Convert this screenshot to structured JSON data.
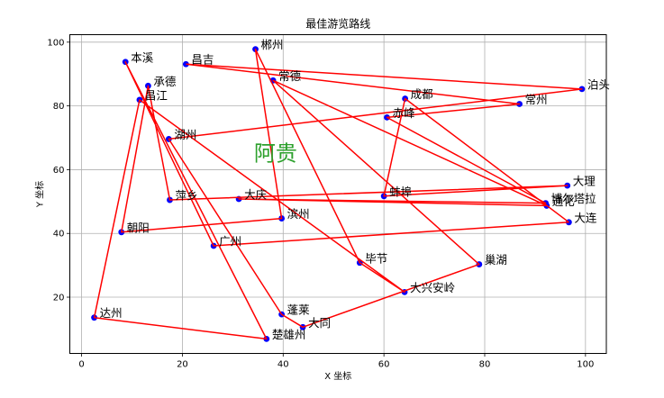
{
  "chart_data": {
    "type": "line",
    "title": "最佳游览路线",
    "xlabel": "X 坐标",
    "ylabel": "Y 坐标",
    "xlim": [
      -2.34,
      104.14
    ],
    "ylim": [
      2.35,
      102.35
    ],
    "xticks": [
      0,
      20,
      40,
      60,
      80,
      100
    ],
    "yticks": [
      20,
      40,
      60,
      80,
      100
    ],
    "grid": true,
    "legend": null,
    "marker_color": "#0000ff",
    "line_color": "#ff0000",
    "grid_color": "#b0b0b0",
    "points": [
      {
        "name": "本溪",
        "x": 8.7,
        "y": 93.8
      },
      {
        "name": "昌吉",
        "x": 20.7,
        "y": 93.1
      },
      {
        "name": "郴州",
        "x": 34.5,
        "y": 97.8
      },
      {
        "name": "常德",
        "x": 38.0,
        "y": 88.0
      },
      {
        "name": "承德",
        "x": 13.2,
        "y": 86.3
      },
      {
        "name": "昌江",
        "x": 11.5,
        "y": 81.9
      },
      {
        "name": "湖州",
        "x": 17.3,
        "y": 69.6
      },
      {
        "name": "泊头",
        "x": 99.3,
        "y": 85.3
      },
      {
        "name": "成都",
        "x": 64.2,
        "y": 82.3
      },
      {
        "name": "常州",
        "x": 86.9,
        "y": 80.6
      },
      {
        "name": "赤峰",
        "x": 60.6,
        "y": 76.4
      },
      {
        "name": "大理",
        "x": 96.4,
        "y": 55.0
      },
      {
        "name": "蚌埠",
        "x": 60.0,
        "y": 51.7
      },
      {
        "name": "萍乡",
        "x": 17.5,
        "y": 50.5
      },
      {
        "name": "大庆",
        "x": 31.2,
        "y": 50.8
      },
      {
        "name": "博尔塔拉",
        "x": 92.1,
        "y": 49.5
      },
      {
        "name": "通化",
        "x": 92.3,
        "y": 48.7
      },
      {
        "name": "大连",
        "x": 96.7,
        "y": 43.5
      },
      {
        "name": "滨州",
        "x": 39.7,
        "y": 44.7
      },
      {
        "name": "朝阳",
        "x": 7.9,
        "y": 40.4
      },
      {
        "name": "广州",
        "x": 26.2,
        "y": 36.1
      },
      {
        "name": "毕节",
        "x": 55.2,
        "y": 30.8
      },
      {
        "name": "巢湖",
        "x": 78.9,
        "y": 30.3
      },
      {
        "name": "大兴安岭",
        "x": 64.1,
        "y": 21.6
      },
      {
        "name": "达州",
        "x": 2.5,
        "y": 13.6
      },
      {
        "name": "蓬莱",
        "x": 39.7,
        "y": 14.6
      },
      {
        "name": "大同",
        "x": 43.9,
        "y": 10.6
      },
      {
        "name": "楚雄州",
        "x": 36.7,
        "y": 6.9
      }
    ],
    "routes": [
      [
        "大连",
        "成都",
        "蚌埠",
        "大理",
        "萍乡",
        "承德",
        "朝阳",
        "滨州",
        "郴州",
        "毕节",
        "大兴安岭",
        "昌江",
        "达州",
        "楚雄州",
        "本溪",
        "广州",
        "大连"
      ],
      [
        "昌吉",
        "泊头",
        "湖州",
        "蓬莱",
        "大同",
        "巢湖",
        "常德",
        "通化",
        "大庆",
        "博尔塔拉",
        "赤峰",
        "常州",
        "昌吉"
      ]
    ],
    "annotations": [
      {
        "text": "阿贵",
        "x": 34.2,
        "y": 62.8,
        "color": "#2ca02c"
      }
    ]
  }
}
